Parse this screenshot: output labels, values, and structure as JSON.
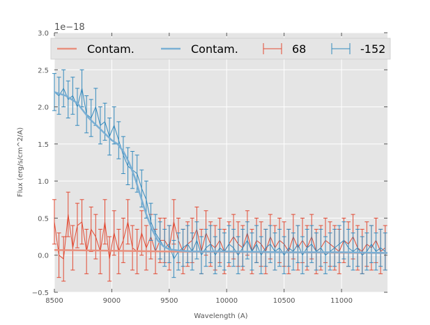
{
  "chart_data": {
    "type": "line",
    "title": "",
    "xlabel": "Wavelength (A)",
    "ylabel": "Flux (erg/s/cm^2/A)",
    "offset_text": "1e−18",
    "xlim": [
      8500,
      11400
    ],
    "ylim": [
      -0.5,
      3.0
    ],
    "xticks": [
      8500,
      9000,
      9500,
      10000,
      10500,
      11000
    ],
    "xtick_labels": [
      "8500",
      "9000",
      "9500",
      "10000",
      "10500",
      "11000"
    ],
    "yticks": [
      -0.5,
      0.0,
      0.5,
      1.0,
      1.5,
      2.0,
      2.5,
      3.0
    ],
    "ytick_labels": [
      "−0.5",
      "0.0",
      "0.5",
      "1.0",
      "1.5",
      "2.0",
      "2.5",
      "3.0"
    ],
    "grid": true,
    "legend_position": "top",
    "legend": [
      {
        "label": "Contam.",
        "kind": "line",
        "color": "#e8907e"
      },
      {
        "label": "Contam.",
        "kind": "line",
        "color": "#7aafd4"
      },
      {
        "label": "68",
        "kind": "errorbar",
        "color": "#e24a33"
      },
      {
        "label": "-152",
        "kind": "errorbar",
        "color": "#348abd"
      }
    ],
    "series": [
      {
        "name": "Contam.",
        "kind": "line",
        "color": "#e8907e",
        "x": [
          8500,
          9000,
          9500,
          10000,
          10500,
          11000,
          11400
        ],
        "y": [
          0.07,
          0.06,
          0.05,
          0.045,
          0.04,
          0.035,
          0.03
        ]
      },
      {
        "name": "Contam.",
        "kind": "line",
        "color": "#7aafd4",
        "x": [
          8500,
          8600,
          8700,
          8800,
          8900,
          9000,
          9050,
          9100,
          9150,
          9200,
          9250,
          9300,
          9350,
          9400,
          9450,
          9500,
          9600,
          9700,
          9800,
          10000,
          10500,
          11000,
          11400
        ],
        "y": [
          2.2,
          2.15,
          2.05,
          1.85,
          1.7,
          1.55,
          1.5,
          1.4,
          1.25,
          1.05,
          0.8,
          0.55,
          0.35,
          0.2,
          0.12,
          0.08,
          0.06,
          0.05,
          0.05,
          0.05,
          0.04,
          0.04,
          0.03
        ]
      },
      {
        "name": "68",
        "kind": "errorbar",
        "color": "#e24a33",
        "x": [
          8500,
          8540,
          8580,
          8620,
          8660,
          8700,
          8740,
          8780,
          8820,
          8860,
          8900,
          8940,
          8980,
          9020,
          9060,
          9100,
          9140,
          9180,
          9220,
          9260,
          9300,
          9340,
          9380,
          9420,
          9460,
          9500,
          9540,
          9580,
          9620,
          9660,
          9700,
          9740,
          9780,
          9820,
          9860,
          9900,
          9940,
          9980,
          10020,
          10060,
          10100,
          10140,
          10180,
          10220,
          10260,
          10300,
          10340,
          10380,
          10420,
          10460,
          10500,
          10540,
          10580,
          10620,
          10660,
          10700,
          10740,
          10780,
          10820,
          10860,
          10900,
          10940,
          10980,
          11020,
          11060,
          11100,
          11140,
          11180,
          11220,
          11260,
          11300,
          11340,
          11380
        ],
        "y": [
          0.45,
          0.0,
          -0.05,
          0.55,
          0.1,
          0.4,
          0.45,
          0.05,
          0.35,
          0.25,
          0.05,
          0.45,
          -0.05,
          0.3,
          0.05,
          0.2,
          0.45,
          0.1,
          0.05,
          0.3,
          0.1,
          0.25,
          0.05,
          0.2,
          0.2,
          0.1,
          0.45,
          0.2,
          0.05,
          0.15,
          0.2,
          0.35,
          0.05,
          0.3,
          0.15,
          0.1,
          0.2,
          0.05,
          0.15,
          0.25,
          0.15,
          0.1,
          0.3,
          0.05,
          0.2,
          0.15,
          0.05,
          0.25,
          0.1,
          0.2,
          0.15,
          0.05,
          0.25,
          0.1,
          0.2,
          0.1,
          0.25,
          0.05,
          0.1,
          0.2,
          0.15,
          0.1,
          0.05,
          0.2,
          0.15,
          0.25,
          0.1,
          0.05,
          0.15,
          0.1,
          0.2,
          0.05,
          0.1
        ],
        "yerr": 0.3
      },
      {
        "name": "-152",
        "kind": "errorbar",
        "color": "#348abd",
        "x": [
          8500,
          8540,
          8580,
          8620,
          8660,
          8700,
          8740,
          8780,
          8820,
          8860,
          8900,
          8940,
          8980,
          9020,
          9060,
          9100,
          9140,
          9180,
          9220,
          9260,
          9300,
          9340,
          9380,
          9420,
          9460,
          9500,
          9540,
          9580,
          9620,
          9660,
          9700,
          9740,
          9780,
          9820,
          9860,
          9900,
          9940,
          9980,
          10020,
          10060,
          10100,
          10140,
          10180,
          10220,
          10260,
          10300,
          10340,
          10380,
          10420,
          10460,
          10500,
          10540,
          10580,
          10620,
          10660,
          10700,
          10740,
          10780,
          10820,
          10860,
          10900,
          10940,
          10980,
          11020,
          11060,
          11100,
          11140,
          11180,
          11220,
          11260,
          11300,
          11340,
          11380
        ],
        "y": [
          2.2,
          2.15,
          2.25,
          2.1,
          2.15,
          2.0,
          2.25,
          1.9,
          1.85,
          2.0,
          1.75,
          1.8,
          1.6,
          1.75,
          1.55,
          1.35,
          1.2,
          1.15,
          1.1,
          0.9,
          0.75,
          0.45,
          0.3,
          0.2,
          0.1,
          0.15,
          -0.05,
          0.05,
          0.1,
          0.15,
          0.05,
          0.2,
          0.0,
          0.1,
          0.15,
          0.0,
          0.1,
          0.05,
          0.15,
          0.1,
          0.0,
          0.1,
          0.2,
          0.05,
          0.15,
          0.0,
          0.1,
          0.15,
          0.05,
          0.1,
          0.0,
          0.1,
          0.05,
          0.15,
          0.0,
          0.1,
          0.15,
          0.05,
          0.1,
          0.0,
          0.05,
          0.1,
          0.15,
          0.2,
          0.1,
          0.05,
          0.1,
          0.0,
          0.05,
          0.15,
          0.05,
          0.1,
          0.05
        ],
        "yerr": 0.25
      }
    ]
  }
}
